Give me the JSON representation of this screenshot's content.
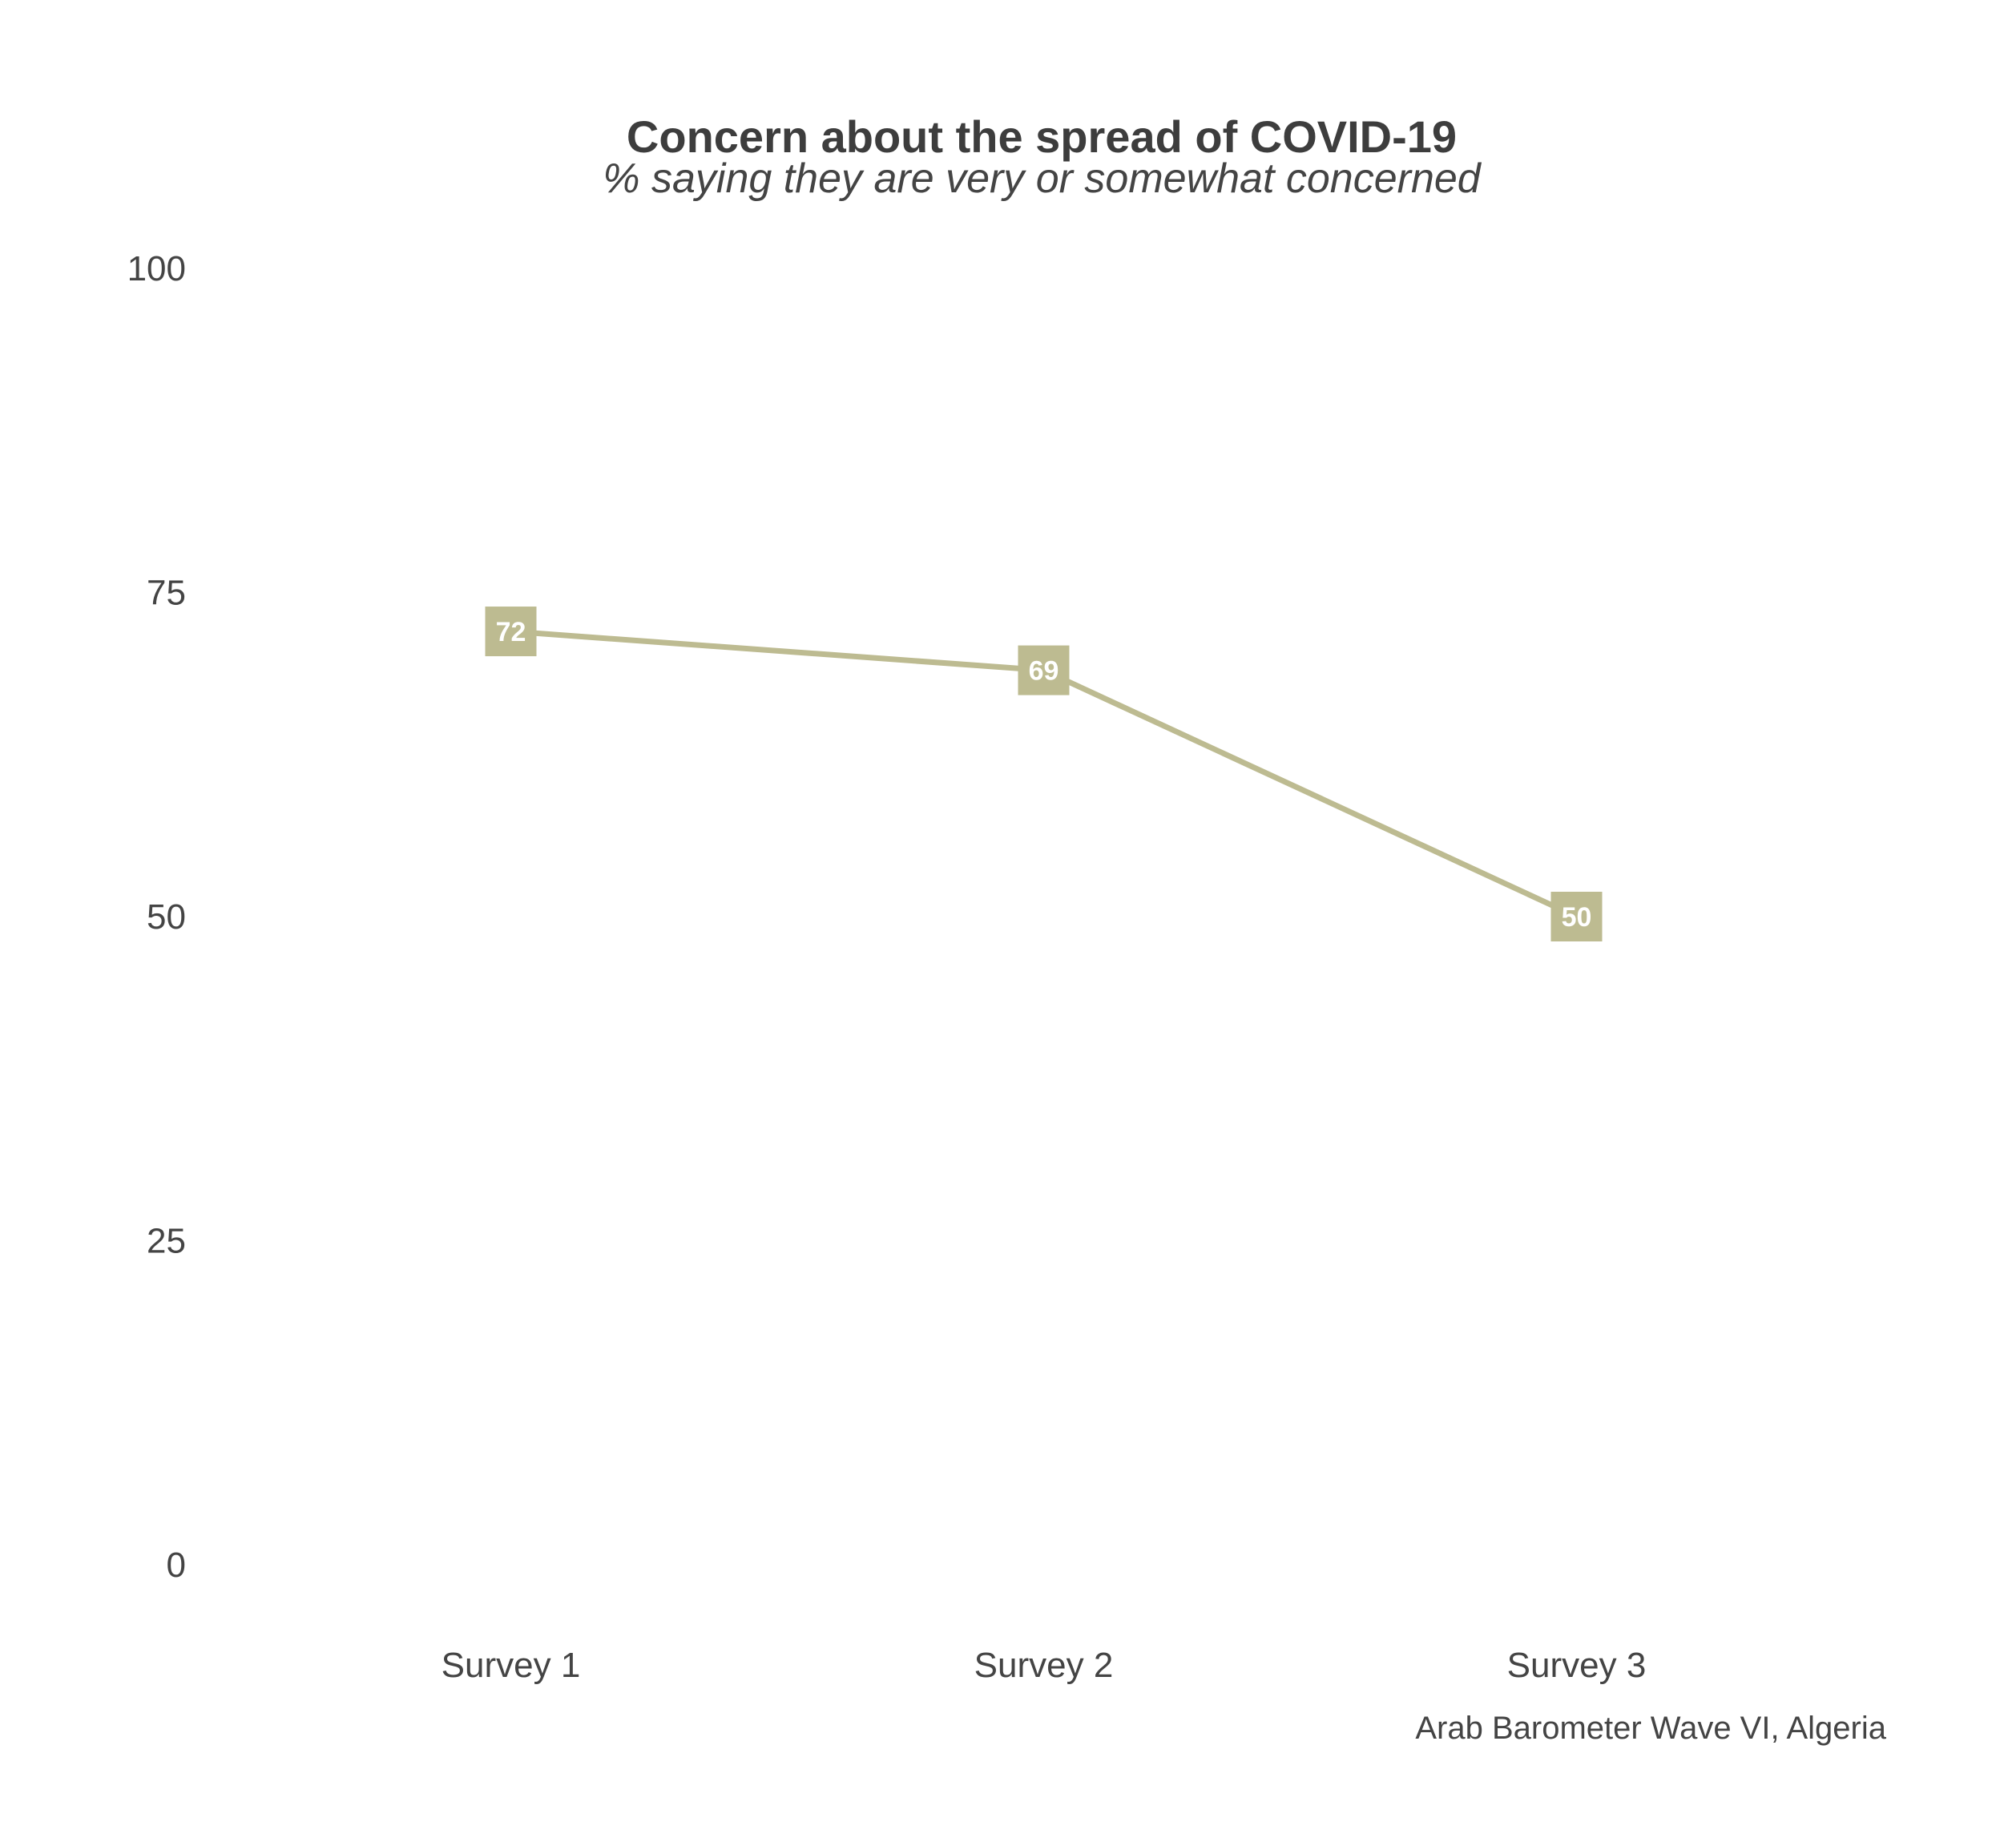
{
  "chart_data": {
    "type": "line",
    "title": "Concern about the spread of COVID-19",
    "subtitle": "% saying they are very or somewhat concerned",
    "categories": [
      "Survey 1",
      "Survey 2",
      "Survey 3"
    ],
    "series": [
      {
        "values": [
          72,
          69,
          50
        ],
        "color": "#bdbb91"
      }
    ],
    "data_labels": [
      "72",
      "69",
      "50"
    ],
    "y_ticks": [
      {
        "value": 0,
        "label": "0"
      },
      {
        "value": 25,
        "label": "25"
      },
      {
        "value": 50,
        "label": "50"
      },
      {
        "value": 75,
        "label": "75"
      },
      {
        "value": 100,
        "label": "100"
      }
    ],
    "ylim": [
      0,
      100
    ],
    "grid": false,
    "legend": "none",
    "caption": "Arab Barometer Wave VI, Algeria",
    "text_color": "#444444",
    "label_text_color": "#ffffff"
  }
}
